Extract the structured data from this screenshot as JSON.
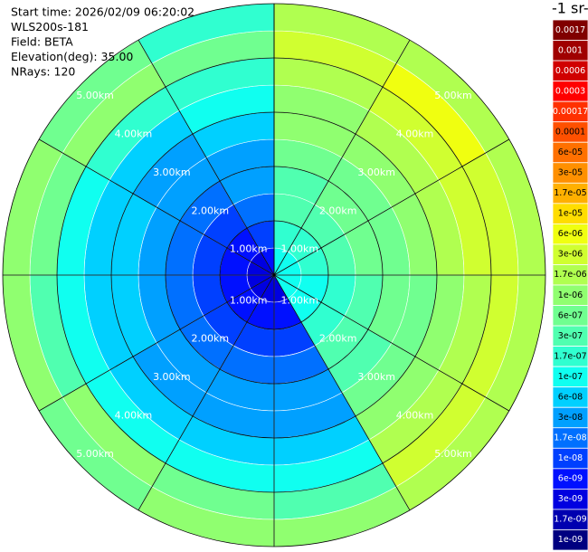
{
  "chart_data": {
    "type": "ppi",
    "info": [
      "Start time: 2026/02/09 06:20:02",
      "WLS200s-181",
      "Field: BETA",
      "Elevation(deg): 35.00",
      "NRays: 120"
    ],
    "azimuth_bins": [
      0,
      30,
      60,
      90,
      120,
      150,
      180,
      210,
      240,
      270,
      300,
      330,
      360
    ],
    "range_bins": [
      0,
      0.5,
      1,
      1.5,
      2,
      2.5,
      3,
      3.5,
      4,
      4.5,
      5
    ],
    "rlim": [
      0,
      5
    ],
    "rticks": [
      {
        "value": 1,
        "label": "1.00km"
      },
      {
        "value": 2,
        "label": "2.00km"
      },
      {
        "value": 3,
        "label": "3.00km"
      },
      {
        "value": 4,
        "label": "4.00km"
      },
      {
        "value": 5,
        "label": "5.00km"
      }
    ],
    "values": [
      [
        1e-07,
        1.7e-07,
        3e-07,
        3e-07,
        6e-07,
        1e-06,
        1e-06,
        1.7e-06,
        3e-06,
        1.7e-06
      ],
      [
        1e-07,
        1.7e-07,
        3e-07,
        6e-07,
        6e-07,
        1e-06,
        1.7e-06,
        3e-06,
        6e-06,
        1.7e-06
      ],
      [
        1e-07,
        1.7e-07,
        3e-07,
        6e-07,
        6e-07,
        1e-06,
        1.7e-06,
        3e-06,
        3e-06,
        1.7e-06
      ],
      [
        1e-07,
        1e-07,
        1.7e-07,
        3e-07,
        6e-07,
        6e-07,
        1e-06,
        1.7e-06,
        3e-06,
        1.7e-06
      ],
      [
        1e-07,
        1e-07,
        1.7e-07,
        3e-07,
        3e-07,
        6e-07,
        1e-06,
        1.7e-06,
        3e-06,
        1.7e-06
      ],
      [
        3e-09,
        6e-09,
        1e-08,
        1.7e-08,
        3e-08,
        3e-08,
        6e-08,
        1e-07,
        3e-07,
        1e-06
      ],
      [
        3e-09,
        6e-09,
        1e-08,
        1.7e-08,
        3e-08,
        3e-08,
        6e-08,
        1e-07,
        6e-07,
        1e-06
      ],
      [
        3e-09,
        6e-09,
        1e-08,
        1.7e-08,
        3e-08,
        3e-08,
        6e-08,
        1e-07,
        1e-06,
        6e-07
      ],
      [
        3e-09,
        6e-09,
        1e-08,
        1.7e-08,
        3e-08,
        6e-08,
        6e-08,
        1e-07,
        3e-07,
        1e-06
      ],
      [
        3e-09,
        6e-09,
        1e-08,
        1.7e-08,
        3e-08,
        6e-08,
        6e-08,
        1e-07,
        6e-07,
        1e-06
      ],
      [
        3e-09,
        6e-09,
        1e-08,
        1.7e-08,
        3e-08,
        3e-08,
        6e-08,
        1.7e-07,
        1e-06,
        6e-07
      ],
      [
        6e-09,
        1e-08,
        1.7e-08,
        3e-08,
        3e-08,
        6e-08,
        1e-07,
        1.7e-07,
        6e-07,
        1.7e-07
      ]
    ],
    "colorbar": {
      "label": "-1 sr-",
      "ticks": [
        0.0017,
        0.001,
        0.0006,
        0.0003,
        0.00017,
        0.0001,
        {
          "value": 6e-05,
          "label": "6e-05"
        },
        {
          "value": 3e-05,
          "label": "3e-05"
        },
        {
          "value": 1.7e-05,
          "label": "1.7e-05"
        },
        {
          "value": 1e-05,
          "label": "1e-05"
        },
        {
          "value": 6e-06,
          "label": "6e-06"
        },
        {
          "value": 3e-06,
          "label": "3e-06"
        },
        {
          "value": 1.7e-06,
          "label": "1.7e-06"
        },
        {
          "value": 1e-06,
          "label": "1e-06"
        },
        {
          "value": 6e-07,
          "label": "6e-07"
        },
        {
          "value": 3e-07,
          "label": "3e-07"
        },
        {
          "value": 1.7e-07,
          "label": "1.7e-07"
        },
        {
          "value": 1e-07,
          "label": "1e-07"
        },
        {
          "value": 6e-08,
          "label": "6e-08"
        },
        {
          "value": 3e-08,
          "label": "3e-08"
        },
        {
          "value": 1.7e-08,
          "label": "1.7e-08"
        },
        {
          "value": 1e-08,
          "label": "1e-08"
        },
        {
          "value": 6e-09,
          "label": "6e-09"
        },
        {
          "value": 3e-09,
          "label": "3e-09"
        },
        {
          "value": 1.7e-09,
          "label": "1.7e-09"
        },
        {
          "value": 1e-09,
          "label": "1e-09"
        }
      ],
      "colors": [
        "#800000",
        "#a00000",
        "#d00000",
        "#ff0000",
        "#ff3000",
        "#ff5000",
        "#ff7000",
        "#ff9000",
        "#ffb000",
        "#ffdd00",
        "#f0ff10",
        "#d0ff30",
        "#b0ff50",
        "#90ff70",
        "#70ff90",
        "#50ffb0",
        "#30ffd0",
        "#10fff0",
        "#00d0ff",
        "#00a0ff",
        "#0070ff",
        "#0040ff",
        "#0010ff",
        "#0000e0",
        "#0000b0",
        "#000080"
      ]
    }
  }
}
